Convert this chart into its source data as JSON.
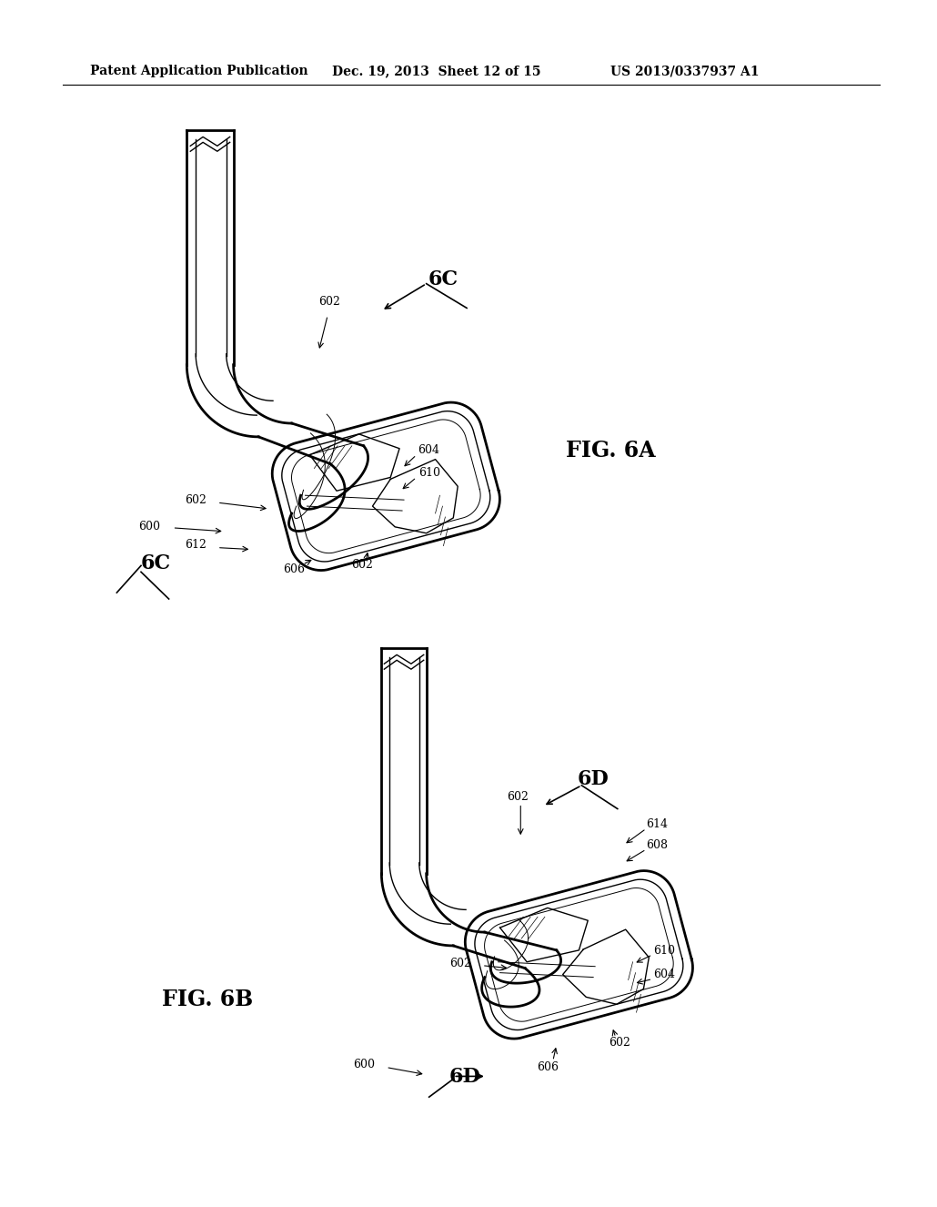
{
  "background_color": "#ffffff",
  "header_left": "Patent Application Publication",
  "header_mid": "Dec. 19, 2013  Sheet 12 of 15",
  "header_right": "US 2013/0337937 A1",
  "fig_label_A": "FIG. 6A",
  "fig_label_B": "FIG. 6B"
}
